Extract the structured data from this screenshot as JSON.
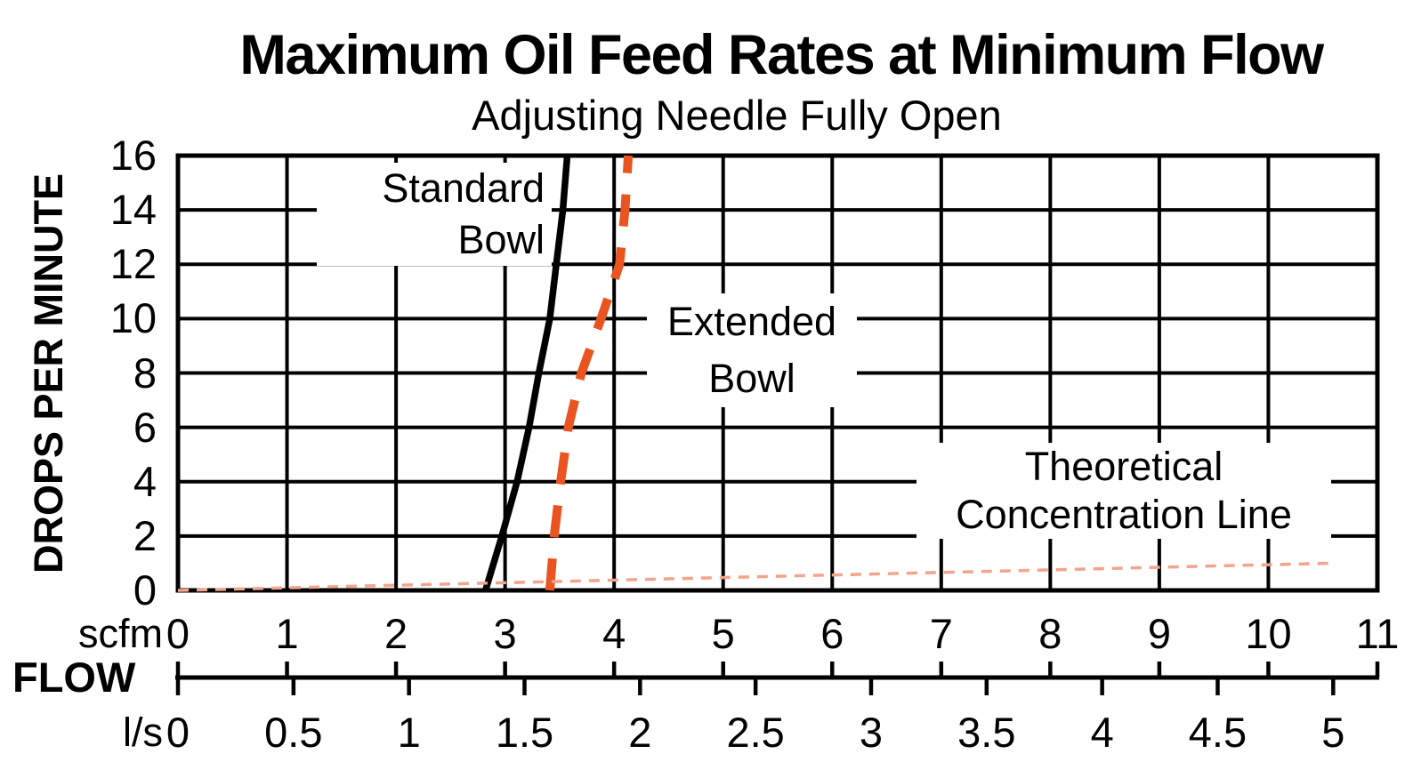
{
  "chart_data": {
    "type": "line",
    "title": "Maximum Oil Feed Rates at Minimum Flow",
    "subtitle": "Adjusting Needle Fully Open",
    "ylabel": "DROPS PER MINUTE",
    "xlabel": "FLOW",
    "ylim": [
      0,
      16
    ],
    "yticks": [
      0,
      2,
      4,
      6,
      8,
      10,
      12,
      14,
      16
    ],
    "grid": true,
    "x_axis_scfm": {
      "unit": "scfm",
      "lim": [
        0,
        11
      ],
      "ticks": [
        0,
        1,
        2,
        3,
        4,
        5,
        6,
        7,
        8,
        9,
        10,
        11
      ]
    },
    "x_axis_ls": {
      "unit": "l/s",
      "lim": [
        0,
        5
      ],
      "ticks": [
        0,
        0.5,
        1,
        1.5,
        2,
        2.5,
        3,
        3.5,
        4,
        4.5,
        5
      ],
      "scfm_per_unit": 2.1189
    },
    "series": [
      {
        "name": "Standard Bowl",
        "label_lines": [
          "Standard",
          "Bowl"
        ],
        "style": "solid",
        "color": "#000000",
        "x_unit": "scfm",
        "points": [
          [
            2.82,
            0
          ],
          [
            2.97,
            2
          ],
          [
            3.11,
            4
          ],
          [
            3.22,
            6
          ],
          [
            3.31,
            8
          ],
          [
            3.41,
            10
          ],
          [
            3.47,
            12
          ],
          [
            3.53,
            14
          ],
          [
            3.57,
            16
          ]
        ]
      },
      {
        "name": "Extended Bowl",
        "label_lines": [
          "Extended",
          "Bowl"
        ],
        "style": "dashed",
        "color": "#ea5420",
        "x_unit": "scfm",
        "points": [
          [
            3.41,
            0
          ],
          [
            3.45,
            2
          ],
          [
            3.51,
            4
          ],
          [
            3.58,
            6
          ],
          [
            3.7,
            8
          ],
          [
            3.88,
            10
          ],
          [
            4.05,
            12
          ],
          [
            4.1,
            14
          ],
          [
            4.13,
            16
          ]
        ]
      },
      {
        "name": "Theoretical Concentration Line",
        "label_lines": [
          "Theoretical",
          "Concentration Line"
        ],
        "style": "fine-dashed",
        "color": "#f3a48c",
        "x_unit": "scfm",
        "points": [
          [
            0,
            0
          ],
          [
            10.6,
            1.0
          ]
        ]
      }
    ]
  }
}
